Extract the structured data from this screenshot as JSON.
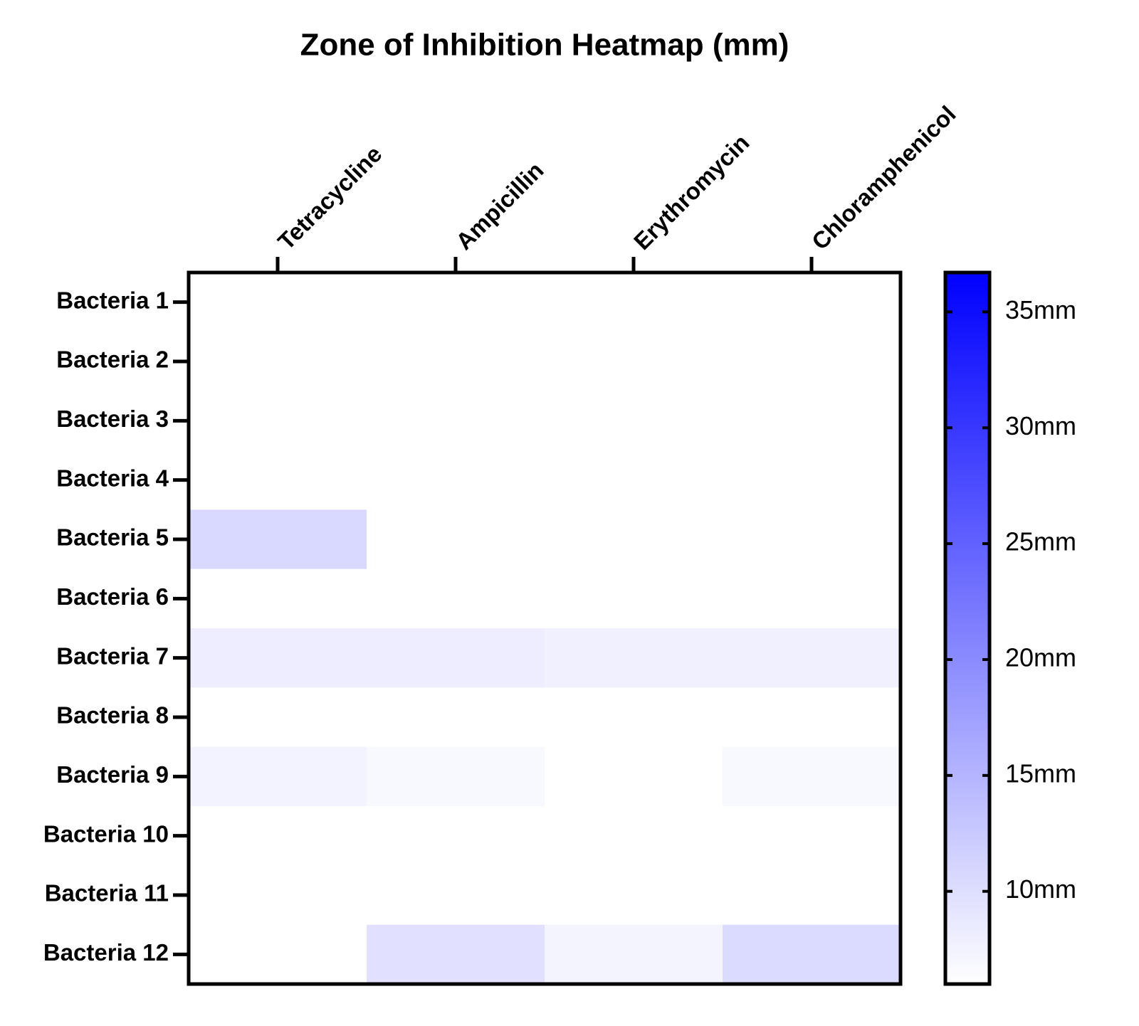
{
  "chart_data": {
    "type": "heatmap",
    "title": "Zone of Inhibition Heatmap (mm)",
    "x": [
      "Tetracycline",
      "Ampicillin",
      "Erythromycin",
      "Chloramphenicol"
    ],
    "y": [
      "Bacteria 1",
      "Bacteria 2",
      "Bacteria 3",
      "Bacteria 4",
      "Bacteria 5",
      "Bacteria 6",
      "Bacteria 7",
      "Bacteria 8",
      "Bacteria 9",
      "Bacteria 10",
      "Bacteria 11",
      "Bacteria 12"
    ],
    "z": [
      [
        6,
        6,
        6,
        6
      ],
      [
        6,
        6,
        6,
        6
      ],
      [
        6,
        6,
        6,
        6
      ],
      [
        6,
        6,
        6,
        6
      ],
      [
        10.6,
        6,
        6,
        6
      ],
      [
        6,
        6,
        6,
        6
      ],
      [
        8.2,
        8.2,
        7.8,
        7.8
      ],
      [
        6,
        6,
        6,
        6
      ],
      [
        7.4,
        6.9,
        6,
        6.9
      ],
      [
        6,
        6,
        6,
        6
      ],
      [
        6,
        6,
        6,
        6
      ],
      [
        6,
        9.6,
        7.3,
        10.3
      ]
    ],
    "colorscale": [
      "#ffffff",
      "#0000ff"
    ],
    "zlim": [
      6,
      36.7
    ],
    "zticks": [
      {
        "value": 10,
        "label": "10mm"
      },
      {
        "value": 15,
        "label": "15mm"
      },
      {
        "value": 20,
        "label": "20mm"
      },
      {
        "value": 25,
        "label": "25mm"
      },
      {
        "value": 30,
        "label": "30mm"
      },
      {
        "value": 35,
        "label": "35mm"
      }
    ]
  }
}
